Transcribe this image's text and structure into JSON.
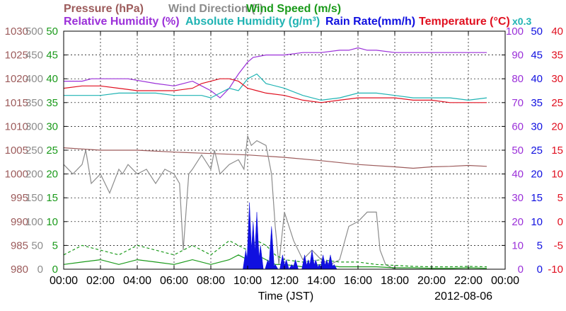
{
  "chart_data": {
    "type": "line",
    "title_lines": [
      [
        {
          "text": "Pressure (hPa)",
          "color": "#9c5b5b"
        },
        {
          "text": "Wind Direction (°)",
          "color": "#8c8c8c"
        },
        {
          "text": "Wind Speed (m/s)",
          "color": "#1a9a1a"
        }
      ],
      [
        {
          "text": "Relative Humidity (%)",
          "color": "#9b30d9"
        },
        {
          "text": "Absolute Humidity (g/m³)",
          "color": "#1fb3b3"
        },
        {
          "text": "Rain Rate(mm/h)",
          "color": "#1010e0"
        },
        {
          "text": "Temperature (°C)",
          "color": "#e01020"
        },
        {
          "text": "x0.3",
          "color": "#1fb3b3"
        }
      ]
    ],
    "xlabel": "Time (JST)",
    "date": "2012-08-06",
    "x_ticks": [
      "00:00",
      "02:00",
      "04:00",
      "06:00",
      "08:00",
      "10:00",
      "12:00",
      "14:00",
      "16:00",
      "18:00",
      "20:00",
      "22:00",
      "00:00"
    ],
    "x_range_hours": [
      0,
      24
    ],
    "grid": true,
    "axes": {
      "pressure": {
        "color": "#9c5b5b",
        "ticks": [
          "1030",
          "1025",
          "1020",
          "1015",
          "1010",
          "1005",
          "1000",
          "995",
          "990",
          "985",
          "980"
        ],
        "range": [
          980,
          1030
        ]
      },
      "wind_direction": {
        "color": "#8c8c8c",
        "ticks": [
          "500",
          "450",
          "400",
          "350",
          "300",
          "250",
          "200",
          "150",
          "100",
          "50",
          "0"
        ],
        "range": [
          0,
          500
        ]
      },
      "wind_speed": {
        "color": "#1a9a1a",
        "ticks": [
          "50",
          "45",
          "40",
          "35",
          "30",
          "25",
          "20",
          "15",
          "10",
          "5",
          "0"
        ],
        "range": [
          0,
          50
        ]
      },
      "humidity": {
        "color": "#9b30d9",
        "ticks": [
          "100",
          "90",
          "80",
          "70",
          "60",
          "50",
          "40",
          "30",
          "20",
          "10",
          "0"
        ],
        "range": [
          0,
          100
        ]
      },
      "rain_rate": {
        "color": "#1010e0",
        "ticks": [
          "50",
          "45",
          "40",
          "35",
          "30",
          "25",
          "20",
          "15",
          "10",
          "5",
          "0"
        ],
        "range": [
          0,
          50
        ]
      },
      "temperature": {
        "color": "#e01020",
        "ticks": [
          "40",
          "35",
          "30",
          "25",
          "20",
          "15",
          "10",
          "5",
          "0",
          "-5",
          "-10"
        ],
        "range": [
          -10,
          40
        ]
      }
    },
    "series": [
      {
        "name": "Relative Humidity (%)",
        "color": "#9b30d9",
        "axis": "humidity",
        "style": "solid",
        "x": [
          0,
          1,
          1.5,
          3,
          3.5,
          5,
          6,
          7,
          7.5,
          8,
          8.5,
          9,
          9.5,
          10,
          10.3,
          11,
          12,
          13,
          14,
          15,
          15.5,
          16,
          16.5,
          17,
          18,
          19,
          20,
          21,
          22,
          23
        ],
        "y": [
          79,
          79,
          80,
          80,
          80,
          78,
          77,
          79,
          77,
          75,
          72,
          76,
          82,
          87,
          89,
          90,
          90,
          91,
          91,
          92,
          92,
          93,
          92,
          92,
          91,
          91,
          91,
          91,
          91,
          91
        ]
      },
      {
        "name": "Absolute Humidity (g/m³)",
        "color": "#1fb3b3",
        "axis": "humidity",
        "style": "solid",
        "x": [
          0,
          1,
          2,
          3,
          4,
          5,
          6,
          7,
          7.5,
          8,
          8.5,
          9,
          9.5,
          10,
          10.5,
          11,
          12,
          13,
          14,
          15,
          16,
          17,
          18,
          19,
          20,
          21,
          22,
          23
        ],
        "y": [
          73,
          73,
          73,
          74,
          74,
          74,
          73,
          73,
          73,
          72,
          74,
          76,
          75,
          80,
          82,
          78,
          76,
          73,
          71,
          72,
          74,
          74,
          73,
          72,
          72,
          72,
          71,
          72
        ]
      },
      {
        "name": "Temperature (°C)",
        "color": "#e01020",
        "axis": "temperature",
        "style": "solid",
        "x": [
          0,
          1,
          2,
          3,
          4,
          5,
          6,
          7,
          7.5,
          8,
          8.5,
          9,
          9.5,
          10,
          10.5,
          11,
          12,
          13,
          14,
          15,
          16,
          17,
          18,
          19,
          20,
          21,
          22,
          23
        ],
        "y": [
          28,
          28.5,
          28.5,
          28,
          27.5,
          27.5,
          27.5,
          28,
          29,
          29.5,
          30,
          30,
          29.5,
          28,
          27.5,
          27,
          26.5,
          25.5,
          25,
          25.5,
          26,
          26,
          26,
          25.5,
          25.5,
          25,
          25,
          25
        ]
      },
      {
        "name": "Pressure (hPa)",
        "color": "#9c5b5b",
        "axis": "pressure",
        "style": "solid",
        "x": [
          0,
          2,
          4,
          6,
          8,
          10,
          12,
          14,
          16,
          18,
          19,
          20,
          21,
          22,
          23
        ],
        "y": [
          1005.5,
          1005,
          1005,
          1004.6,
          1004.3,
          1004,
          1003.5,
          1002.8,
          1002,
          1001.5,
          1001.2,
          1001.5,
          1001.6,
          1001.8,
          1001.6
        ]
      },
      {
        "name": "Wind Direction (°)",
        "color": "#8c8c8c",
        "axis": "wind_direction",
        "style": "solid",
        "x": [
          0,
          0.5,
          1,
          1.2,
          1.5,
          2,
          2.5,
          3,
          3.2,
          3.5,
          4,
          4.5,
          5,
          5.5,
          6,
          6.3,
          6.5,
          6.8,
          7,
          7.5,
          8,
          8.2,
          8.5,
          9,
          9.5,
          9.8,
          10,
          10.2,
          10.5,
          11,
          11.3,
          11.5,
          11.7,
          12,
          12.5,
          13,
          13.5,
          14,
          14.5,
          15,
          15.5,
          16,
          16.5,
          17,
          17.2,
          17.5,
          18,
          23
        ],
        "y": [
          220,
          200,
          220,
          250,
          180,
          200,
          160,
          210,
          200,
          220,
          200,
          210,
          180,
          210,
          200,
          180,
          40,
          200,
          210,
          240,
          210,
          250,
          200,
          220,
          230,
          210,
          280,
          260,
          270,
          260,
          200,
          90,
          10,
          120,
          60,
          20,
          40,
          20,
          10,
          20,
          90,
          100,
          120,
          120,
          40,
          10,
          0,
          0
        ]
      },
      {
        "name": "Wind Speed (m/s)",
        "color": "#1a9a1a",
        "axis": "wind_speed",
        "style": "solid",
        "x": [
          0,
          1,
          2,
          3,
          4,
          5,
          6,
          7,
          8,
          9,
          9.5,
          10,
          10.5,
          11,
          11.5,
          12,
          13,
          14,
          15,
          16,
          17,
          18,
          19,
          20,
          21,
          22,
          23
        ],
        "y": [
          1,
          1.5,
          2,
          1,
          2,
          1.5,
          1,
          2,
          1,
          2,
          3,
          2,
          3,
          2,
          1,
          1,
          0.5,
          1,
          0.5,
          0.5,
          0.5,
          0.3,
          0.3,
          0.2,
          0.2,
          0.3,
          0.2
        ]
      },
      {
        "name": "Wind Speed gust",
        "color": "#1a9a1a",
        "axis": "wind_speed",
        "style": "dashed",
        "x": [
          0,
          1,
          2,
          3,
          4,
          5,
          6,
          7,
          8,
          9,
          9.5,
          10,
          10.5,
          11,
          11.5,
          12,
          13,
          14,
          15,
          16,
          17,
          18,
          19,
          20,
          21,
          22,
          23
        ],
        "y": [
          3,
          5,
          4,
          3,
          5,
          4,
          3,
          5,
          3,
          6,
          5,
          4,
          6,
          5,
          3,
          2,
          1.5,
          2,
          1.5,
          1.5,
          1,
          0.8,
          0.6,
          0.5,
          0.5,
          0.6,
          0.5
        ]
      }
    ],
    "rain_rate": {
      "name": "Rain Rate(mm/h)",
      "color": "#1010e0",
      "axis": "rain_rate",
      "x": [
        9.9,
        10.1,
        10.3,
        10.5,
        10.7,
        11.1,
        11.3,
        11.5,
        11.9,
        12.1,
        12.4,
        12.6,
        13.1,
        13.3,
        13.5,
        13.7,
        13.9,
        14.1,
        14.3,
        14.5,
        14.7
      ],
      "y": [
        4,
        14,
        10,
        12,
        5,
        2,
        9,
        1,
        3,
        2,
        1,
        2,
        3,
        2,
        4,
        2,
        1,
        3,
        2,
        3,
        1
      ]
    }
  }
}
